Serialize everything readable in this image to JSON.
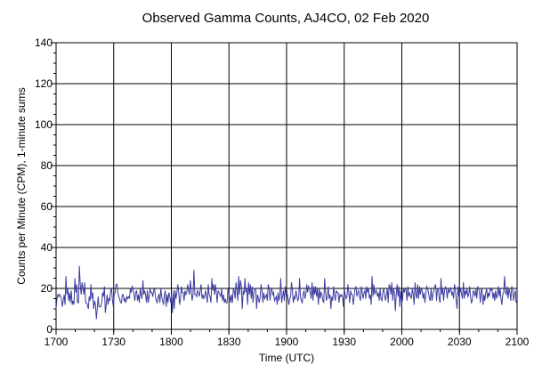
{
  "chart_data": {
    "type": "line",
    "title": "Observed Gamma Counts, AJ4CO, 02 Feb 2020",
    "xlabel": "Time (UTC)",
    "ylabel": "Counts per Minute (CPM), 1-minute sums",
    "x_tick_labels": [
      "1700",
      "1730",
      "1800",
      "1830",
      "1900",
      "1930",
      "2000",
      "2030",
      "2100"
    ],
    "y_tick_labels": [
      "0",
      "20",
      "40",
      "60",
      "80",
      "100",
      "120",
      "140"
    ],
    "x_range_minutes": [
      0,
      240
    ],
    "ylim": [
      0,
      140
    ],
    "grid": true,
    "line_color": "#3c3ca0",
    "series": [
      {
        "values": [
          10,
          15,
          17,
          16,
          17,
          16,
          15,
          11,
          14,
          17,
          12,
          26,
          17,
          20,
          14,
          18,
          13,
          19,
          12,
          14,
          12,
          25,
          18,
          22,
          13,
          13,
          31,
          22,
          17,
          23,
          20,
          17,
          23,
          13,
          13,
          12,
          10,
          16,
          14,
          22,
          15,
          18,
          10,
          14,
          12,
          5,
          10,
          16,
          11,
          11,
          11,
          13,
          18,
          16,
          21,
          8,
          12,
          17,
          12,
          15,
          14,
          19,
          20,
          14,
          11,
          17,
          18,
          22,
          22,
          18,
          16,
          15,
          13,
          13,
          17,
          17,
          14,
          15,
          13,
          16,
          15,
          16,
          15,
          20,
          18,
          21,
          20,
          17,
          14,
          18,
          19,
          14,
          17,
          13,
          20,
          17,
          15,
          24,
          17,
          19,
          17,
          13,
          19,
          13,
          16,
          20,
          18,
          18,
          16,
          19,
          20,
          16,
          14,
          13,
          16,
          17,
          13,
          20,
          16,
          14,
          12,
          17,
          19,
          11,
          17,
          13,
          18,
          16,
          13,
          17,
          8,
          19,
          10,
          19,
          15,
          18,
          22,
          18,
          12,
          15,
          21,
          18,
          18,
          14,
          19,
          17,
          18,
          22,
          19,
          17,
          24,
          19,
          14,
          17,
          29,
          17,
          17,
          16,
          19,
          18,
          16,
          19,
          22,
          15,
          17,
          15,
          16,
          19,
          16,
          13,
          22,
          17,
          16,
          13,
          25,
          19,
          22,
          17,
          22,
          18,
          13,
          19,
          18,
          17,
          16,
          20,
          14,
          17,
          13,
          15,
          13,
          13,
          20,
          17,
          16,
          13,
          17,
          13,
          20,
          19,
          15,
          23,
          19,
          14,
          26,
          17,
          24,
          21,
          10,
          19,
          17,
          25,
          18,
          20,
          12,
          23,
          17,
          22,
          15,
          21,
          13,
          18,
          20,
          20,
          10,
          17,
          15,
          13,
          16,
          22,
          19,
          13,
          18,
          15,
          16,
          17,
          14,
          22,
          20,
          14,
          19,
          20,
          17,
          18,
          14,
          15,
          16,
          12,
          18,
          14,
          17,
          25,
          13,
          16,
          19,
          14,
          21,
          17,
          18,
          15,
          12,
          15,
          16,
          23,
          19,
          13,
          16,
          15,
          19,
          16,
          14,
          15,
          25,
          16,
          14,
          13,
          17,
          19,
          15,
          17,
          22,
          18,
          21,
          20,
          18,
          15,
          23,
          14,
          21,
          17,
          21,
          16,
          20,
          12,
          20,
          15,
          18,
          17,
          14,
          13,
          25,
          18,
          14,
          16,
          21,
          15,
          17,
          10,
          16,
          14,
          21,
          17,
          14,
          19,
          18,
          18,
          13,
          17,
          16,
          17,
          16,
          11,
          20,
          17,
          15,
          16,
          22,
          18,
          13,
          19,
          17,
          17,
          12,
          16,
          20,
          21,
          16,
          18,
          19,
          16,
          14,
          21,
          18,
          15,
          18,
          19,
          15,
          21,
          18,
          20,
          15,
          17,
          12,
          26,
          16,
          22,
          17,
          19,
          19,
          16,
          18,
          14,
          20,
          15,
          14,
          18,
          20,
          17,
          14,
          17,
          20,
          13,
          22,
          21,
          17,
          23,
          14,
          20,
          18,
          9,
          17,
          22,
          16,
          21,
          11,
          19,
          13,
          14,
          20,
          18,
          20,
          19,
          14,
          21,
          16,
          18,
          16,
          15,
          20,
          17,
          12,
          23,
          17,
          15,
          22,
          15,
          21,
          17,
          20,
          19,
          15,
          18,
          13,
          17,
          21,
          20,
          18,
          15,
          14,
          20,
          14,
          17,
          19,
          21,
          22,
          14,
          20,
          20,
          15,
          13,
          25,
          17,
          20,
          14,
          19,
          21,
          19,
          15,
          20,
          18,
          19,
          20,
          17,
          18,
          15,
          22,
          20,
          14,
          10,
          21,
          16,
          18,
          20,
          17,
          15,
          23,
          15,
          19,
          17,
          20,
          16,
          17,
          21,
          16,
          13,
          14,
          19,
          18,
          16,
          20,
          15,
          21,
          20,
          18,
          13,
          20,
          19,
          12,
          17,
          14,
          18,
          20,
          15,
          18,
          16,
          20,
          19,
          20,
          15,
          18,
          14,
          19,
          15,
          17,
          21,
          16,
          20,
          15,
          12,
          17,
          18,
          26,
          18,
          17,
          21,
          15,
          20,
          18,
          14,
          21,
          20,
          14,
          17,
          19,
          13,
          15
        ]
      }
    ]
  }
}
